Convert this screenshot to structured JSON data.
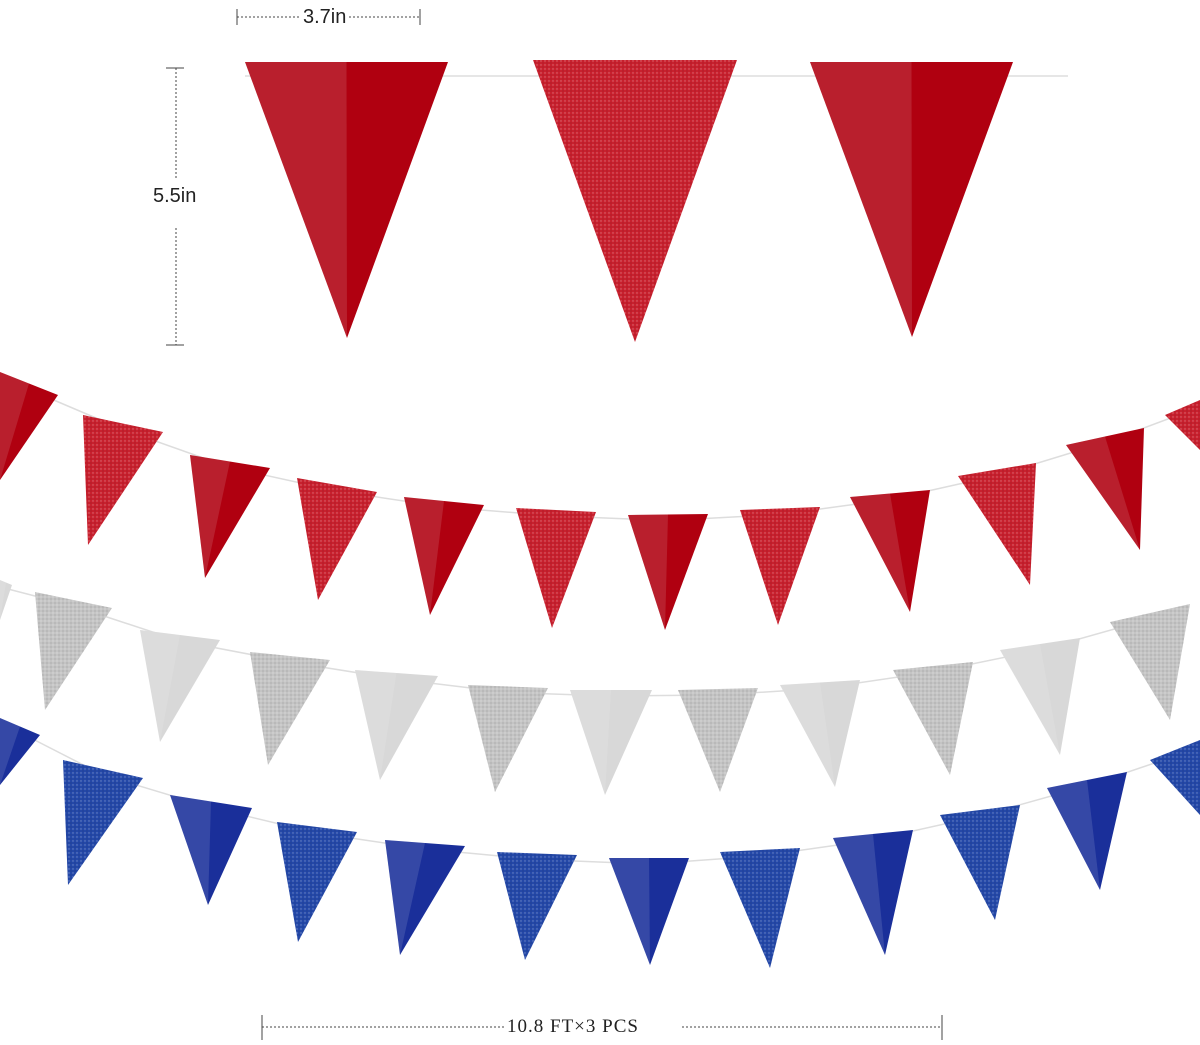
{
  "dimensions": {
    "width_label": "3.7in",
    "height_label": "5.5in",
    "length_label": "10.8 FT×3 PCS"
  },
  "colors": {
    "red_metallic": "#b00010",
    "red_glitter": "#c8202e",
    "silver_metallic": "#d8d8d8",
    "silver_glitter": "#c4c4c4",
    "blue_metallic": "#1a2f9a",
    "blue_glitter": "#2448a8"
  },
  "garlands": [
    {
      "name": "red",
      "pattern": [
        "metallic",
        "glitter",
        "metallic"
      ]
    },
    {
      "name": "red"
    },
    {
      "name": "silver"
    },
    {
      "name": "blue"
    }
  ]
}
